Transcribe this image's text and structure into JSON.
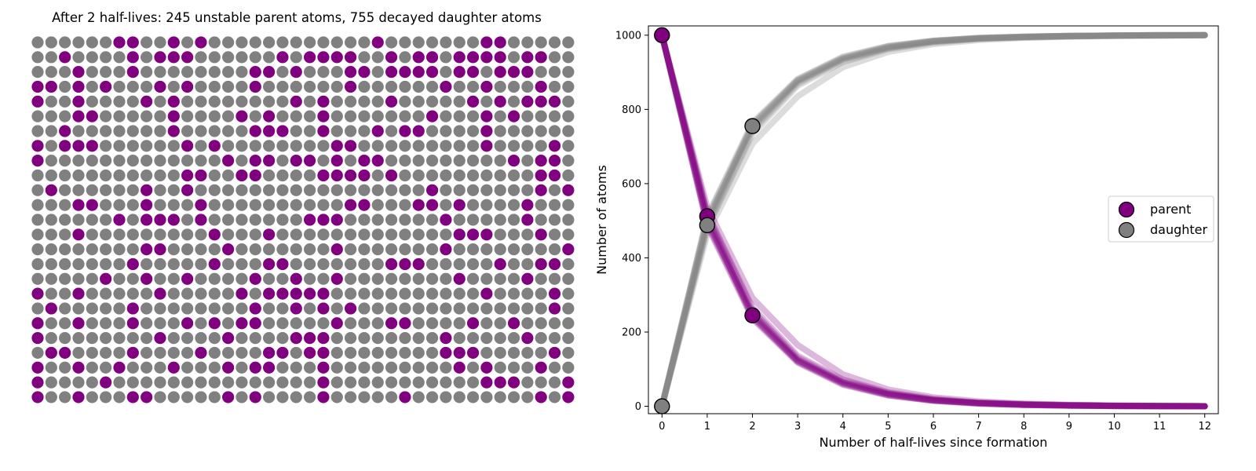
{
  "figure": {
    "left_title": "After 2 half-lives: 245 unstable parent atoms, 755 decayed daughter atoms"
  },
  "colors": {
    "parent": "#800080",
    "daughter": "#808080",
    "parent_light": "#c98ec9",
    "daughter_light": "#c8c8c8",
    "marker_edge": "#000000"
  },
  "atom_grid": {
    "rows": 25,
    "cols": 40,
    "parent_count": 245,
    "daughter_count": 755,
    "parent_cells": [
      [
        0,
        6
      ],
      [
        0,
        7
      ],
      [
        0,
        10
      ],
      [
        0,
        12
      ],
      [
        0,
        25
      ],
      [
        0,
        33
      ],
      [
        0,
        34
      ],
      [
        1,
        2
      ],
      [
        1,
        7
      ],
      [
        1,
        9
      ],
      [
        1,
        10
      ],
      [
        1,
        11
      ],
      [
        1,
        18
      ],
      [
        1,
        20
      ],
      [
        1,
        21
      ],
      [
        1,
        22
      ],
      [
        1,
        23
      ],
      [
        1,
        26
      ],
      [
        1,
        28
      ],
      [
        1,
        29
      ],
      [
        1,
        31
      ],
      [
        1,
        32
      ],
      [
        1,
        33
      ],
      [
        1,
        34
      ],
      [
        1,
        36
      ],
      [
        1,
        37
      ],
      [
        2,
        3
      ],
      [
        2,
        7
      ],
      [
        2,
        16
      ],
      [
        2,
        17
      ],
      [
        2,
        19
      ],
      [
        2,
        23
      ],
      [
        2,
        24
      ],
      [
        2,
        26
      ],
      [
        2,
        27
      ],
      [
        2,
        28
      ],
      [
        2,
        29
      ],
      [
        2,
        31
      ],
      [
        2,
        32
      ],
      [
        2,
        34
      ],
      [
        2,
        35
      ],
      [
        2,
        36
      ],
      [
        3,
        0
      ],
      [
        3,
        1
      ],
      [
        3,
        3
      ],
      [
        3,
        5
      ],
      [
        3,
        9
      ],
      [
        3,
        11
      ],
      [
        3,
        16
      ],
      [
        3,
        23
      ],
      [
        3,
        30
      ],
      [
        3,
        33
      ],
      [
        3,
        37
      ],
      [
        4,
        0
      ],
      [
        4,
        3
      ],
      [
        4,
        8
      ],
      [
        4,
        10
      ],
      [
        4,
        19
      ],
      [
        4,
        21
      ],
      [
        4,
        26
      ],
      [
        4,
        32
      ],
      [
        4,
        34
      ],
      [
        4,
        36
      ],
      [
        4,
        37
      ],
      [
        4,
        38
      ],
      [
        5,
        3
      ],
      [
        5,
        4
      ],
      [
        5,
        10
      ],
      [
        5,
        15
      ],
      [
        5,
        17
      ],
      [
        5,
        21
      ],
      [
        5,
        29
      ],
      [
        5,
        33
      ],
      [
        5,
        35
      ],
      [
        6,
        2
      ],
      [
        6,
        10
      ],
      [
        6,
        16
      ],
      [
        6,
        17
      ],
      [
        6,
        18
      ],
      [
        6,
        21
      ],
      [
        6,
        25
      ],
      [
        6,
        27
      ],
      [
        6,
        28
      ],
      [
        6,
        33
      ],
      [
        7,
        0
      ],
      [
        7,
        2
      ],
      [
        7,
        3
      ],
      [
        7,
        4
      ],
      [
        7,
        11
      ],
      [
        7,
        13
      ],
      [
        7,
        22
      ],
      [
        7,
        23
      ],
      [
        7,
        33
      ],
      [
        7,
        38
      ],
      [
        8,
        0
      ],
      [
        8,
        14
      ],
      [
        8,
        16
      ],
      [
        8,
        17
      ],
      [
        8,
        19
      ],
      [
        8,
        20
      ],
      [
        8,
        22
      ],
      [
        8,
        24
      ],
      [
        8,
        25
      ],
      [
        8,
        35
      ],
      [
        8,
        37
      ],
      [
        8,
        38
      ],
      [
        9,
        11
      ],
      [
        9,
        12
      ],
      [
        9,
        15
      ],
      [
        9,
        16
      ],
      [
        9,
        21
      ],
      [
        9,
        22
      ],
      [
        9,
        23
      ],
      [
        9,
        24
      ],
      [
        9,
        26
      ],
      [
        9,
        37
      ],
      [
        9,
        38
      ],
      [
        10,
        1
      ],
      [
        10,
        8
      ],
      [
        10,
        11
      ],
      [
        10,
        29
      ],
      [
        10,
        37
      ],
      [
        10,
        39
      ],
      [
        11,
        3
      ],
      [
        11,
        4
      ],
      [
        11,
        8
      ],
      [
        11,
        12
      ],
      [
        11,
        23
      ],
      [
        11,
        24
      ],
      [
        11,
        28
      ],
      [
        11,
        29
      ],
      [
        11,
        31
      ],
      [
        11,
        36
      ],
      [
        12,
        6
      ],
      [
        12,
        8
      ],
      [
        12,
        9
      ],
      [
        12,
        10
      ],
      [
        12,
        12
      ],
      [
        12,
        20
      ],
      [
        12,
        21
      ],
      [
        12,
        22
      ],
      [
        12,
        30
      ],
      [
        12,
        36
      ],
      [
        13,
        3
      ],
      [
        13,
        13
      ],
      [
        13,
        17
      ],
      [
        13,
        31
      ],
      [
        13,
        32
      ],
      [
        13,
        33
      ],
      [
        13,
        37
      ],
      [
        14,
        8
      ],
      [
        14,
        9
      ],
      [
        14,
        14
      ],
      [
        14,
        22
      ],
      [
        14,
        30
      ],
      [
        14,
        39
      ],
      [
        15,
        7
      ],
      [
        15,
        13
      ],
      [
        15,
        17
      ],
      [
        15,
        18
      ],
      [
        15,
        26
      ],
      [
        15,
        27
      ],
      [
        15,
        28
      ],
      [
        15,
        34
      ],
      [
        15,
        37
      ],
      [
        15,
        38
      ],
      [
        16,
        5
      ],
      [
        16,
        8
      ],
      [
        16,
        11
      ],
      [
        16,
        16
      ],
      [
        16,
        19
      ],
      [
        16,
        22
      ],
      [
        16,
        31
      ],
      [
        16,
        36
      ],
      [
        17,
        0
      ],
      [
        17,
        3
      ],
      [
        17,
        9
      ],
      [
        17,
        15
      ],
      [
        17,
        17
      ],
      [
        17,
        18
      ],
      [
        17,
        19
      ],
      [
        17,
        20
      ],
      [
        17,
        21
      ],
      [
        17,
        33
      ],
      [
        17,
        38
      ],
      [
        18,
        1
      ],
      [
        18,
        7
      ],
      [
        18,
        16
      ],
      [
        18,
        19
      ],
      [
        18,
        21
      ],
      [
        18,
        23
      ],
      [
        18,
        38
      ],
      [
        19,
        0
      ],
      [
        19,
        3
      ],
      [
        19,
        7
      ],
      [
        19,
        11
      ],
      [
        19,
        13
      ],
      [
        19,
        15
      ],
      [
        19,
        16
      ],
      [
        19,
        22
      ],
      [
        19,
        26
      ],
      [
        19,
        27
      ],
      [
        19,
        32
      ],
      [
        19,
        35
      ],
      [
        20,
        0
      ],
      [
        20,
        9
      ],
      [
        20,
        14
      ],
      [
        20,
        19
      ],
      [
        20,
        20
      ],
      [
        20,
        21
      ],
      [
        20,
        30
      ],
      [
        20,
        36
      ],
      [
        21,
        1
      ],
      [
        21,
        2
      ],
      [
        21,
        7
      ],
      [
        21,
        12
      ],
      [
        21,
        17
      ],
      [
        21,
        18
      ],
      [
        21,
        20
      ],
      [
        21,
        21
      ],
      [
        21,
        30
      ],
      [
        21,
        31
      ],
      [
        21,
        32
      ],
      [
        21,
        38
      ],
      [
        22,
        0
      ],
      [
        22,
        3
      ],
      [
        22,
        6
      ],
      [
        22,
        10
      ],
      [
        22,
        14
      ],
      [
        22,
        16
      ],
      [
        22,
        17
      ],
      [
        22,
        21
      ],
      [
        22,
        31
      ],
      [
        22,
        33
      ],
      [
        22,
        37
      ],
      [
        23,
        0
      ],
      [
        23,
        5
      ],
      [
        23,
        21
      ],
      [
        23,
        33
      ],
      [
        23,
        34
      ],
      [
        23,
        35
      ],
      [
        23,
        39
      ],
      [
        24,
        0
      ],
      [
        24,
        3
      ],
      [
        24,
        7
      ],
      [
        24,
        8
      ],
      [
        24,
        14
      ],
      [
        24,
        16
      ],
      [
        24,
        21
      ],
      [
        24,
        27
      ],
      [
        24,
        37
      ],
      [
        24,
        39
      ]
    ]
  },
  "chart_data": {
    "type": "line",
    "xlabel": "Number of half-lives since formation",
    "ylabel": "Number of atoms",
    "xlim": [
      -0.3,
      12.3
    ],
    "ylim": [
      -20,
      1025
    ],
    "xticks": [
      0,
      1,
      2,
      3,
      4,
      5,
      6,
      7,
      8,
      9,
      10,
      11,
      12
    ],
    "yticks": [
      0,
      200,
      400,
      600,
      800,
      1000
    ],
    "legend": {
      "position": "center-right",
      "entries": [
        {
          "label": "parent",
          "color_key": "parent"
        },
        {
          "label": "daughter",
          "color_key": "daughter"
        }
      ]
    },
    "parent_trials": [
      [
        1000,
        509,
        240,
        122,
        62,
        31,
        16,
        8,
        4,
        2,
        1,
        0,
        0
      ],
      [
        1000,
        497,
        252,
        126,
        65,
        34,
        17,
        9,
        5,
        2,
        1,
        1,
        0
      ],
      [
        1000,
        515,
        258,
        131,
        68,
        35,
        18,
        9,
        5,
        3,
        1,
        1,
        0
      ],
      [
        1000,
        488,
        236,
        118,
        58,
        29,
        15,
        7,
        4,
        2,
        1,
        0,
        0
      ],
      [
        1000,
        503,
        247,
        124,
        64,
        33,
        16,
        8,
        4,
        2,
        1,
        0,
        0
      ],
      [
        1000,
        521,
        266,
        136,
        72,
        38,
        20,
        10,
        6,
        3,
        2,
        1,
        0
      ],
      [
        1000,
        492,
        243,
        120,
        60,
        30,
        15,
        8,
        4,
        2,
        1,
        0,
        0
      ],
      [
        1000,
        536,
        292,
        165,
        86,
        45,
        24,
        13,
        7,
        4,
        2,
        1,
        0
      ]
    ],
    "daughter_trials": [
      [
        0,
        491,
        760,
        878,
        938,
        969,
        984,
        992,
        996,
        998,
        999,
        1000,
        1000
      ],
      [
        0,
        503,
        748,
        874,
        935,
        966,
        983,
        991,
        995,
        998,
        999,
        999,
        1000
      ],
      [
        0,
        485,
        742,
        869,
        932,
        965,
        982,
        991,
        995,
        997,
        999,
        999,
        1000
      ],
      [
        0,
        512,
        764,
        882,
        942,
        971,
        985,
        993,
        996,
        998,
        999,
        1000,
        1000
      ],
      [
        0,
        497,
        753,
        876,
        936,
        967,
        984,
        992,
        996,
        998,
        999,
        1000,
        1000
      ],
      [
        0,
        479,
        734,
        864,
        928,
        962,
        980,
        990,
        994,
        997,
        998,
        999,
        1000
      ],
      [
        0,
        508,
        757,
        880,
        940,
        970,
        985,
        992,
        996,
        998,
        999,
        1000,
        1000
      ],
      [
        0,
        464,
        708,
        835,
        914,
        955,
        976,
        987,
        993,
        996,
        998,
        999,
        1000
      ]
    ],
    "markers": {
      "parent": [
        [
          0,
          1000
        ],
        [
          1,
          512
        ],
        [
          2,
          245
        ]
      ],
      "daughter": [
        [
          0,
          0
        ],
        [
          1,
          488
        ],
        [
          2,
          755
        ]
      ]
    }
  }
}
